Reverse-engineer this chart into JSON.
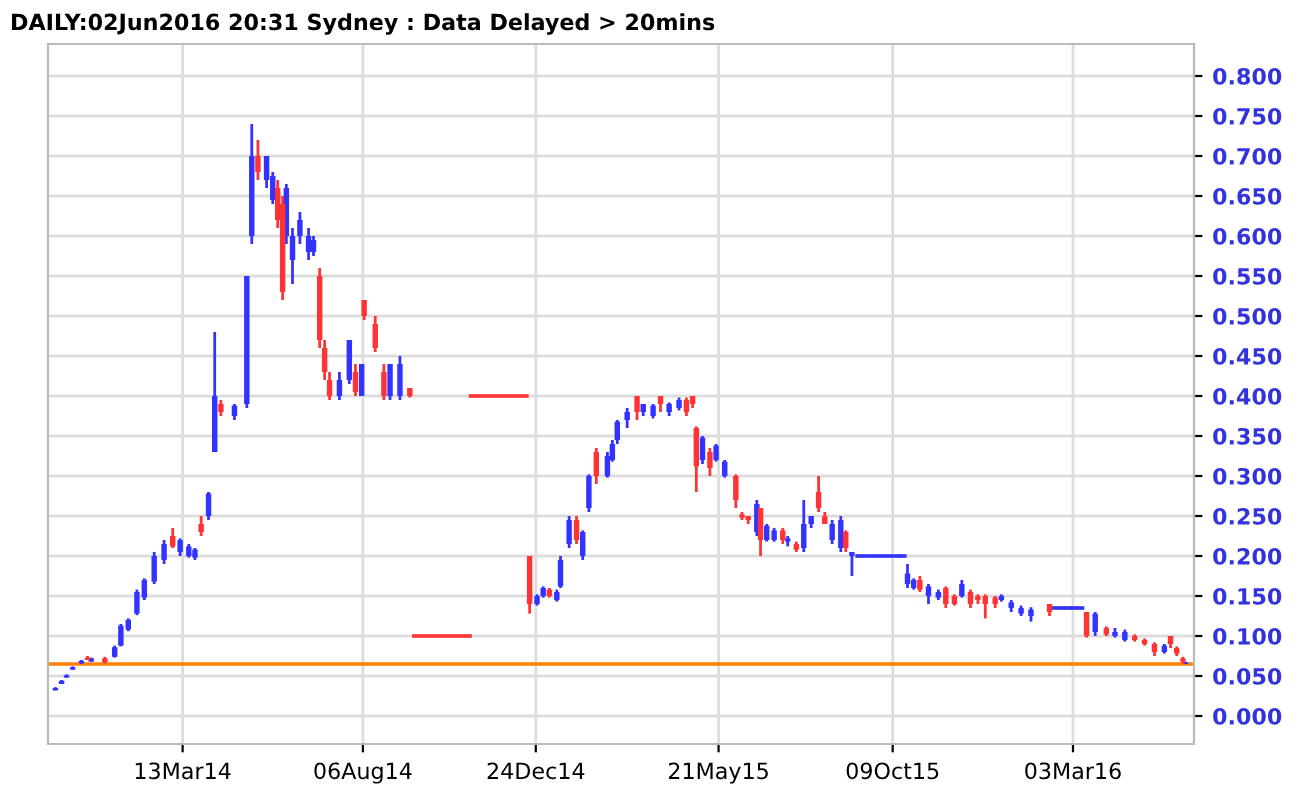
{
  "chart_data": {
    "type": "candlestick",
    "title": "DAILY:02Jun2016 20:31 Sydney : Data Delayed > 20mins",
    "series": [
      {
        "color": "#3333ff",
        "x": [
          "2013-11-30",
          "2013-12-05",
          "2013-12-09",
          "2013-12-14",
          "2013-12-21",
          "2013-12-29",
          "2014-01-17",
          "2014-01-22",
          "2014-01-28",
          "2014-02-04",
          "2014-02-10",
          "2014-02-18",
          "2014-02-26",
          "2014-03-11",
          "2014-03-18",
          "2014-03-23",
          "2014-04-03",
          "2014-04-08",
          "2014-04-24",
          "2014-05-04",
          "2014-05-08",
          "2014-05-20",
          "2014-05-25",
          "2014-06-05",
          "2014-06-10",
          "2014-06-16",
          "2014-06-23",
          "2014-06-27",
          "2014-07-18",
          "2014-07-26",
          "2014-08-05",
          "2014-08-28",
          "2014-09-05",
          "2014-12-25",
          "2014-12-30",
          "2015-01-10",
          "2015-01-13",
          "2015-01-20",
          "2015-01-31",
          "2015-02-05",
          "2015-02-20",
          "2015-02-24",
          "2015-02-28",
          "2015-03-08",
          "2015-03-21",
          "2015-03-29",
          "2015-04-11",
          "2015-04-19",
          "2015-05-08",
          "2015-05-19",
          "2015-05-26",
          "2015-06-21",
          "2015-06-29",
          "2015-07-05",
          "2015-07-16",
          "2015-07-29",
          "2015-08-04",
          "2015-08-21",
          "2015-08-28",
          "2015-09-06",
          "2015-09-12",
          "2015-09-18",
          "2015-09-24",
          "2015-09-30",
          "2015-10-06",
          "2015-10-12",
          "2015-10-17",
          "2015-10-21",
          "2015-10-26",
          "2015-11-07",
          "2015-11-15",
          "2015-12-04",
          "2016-01-05",
          "2016-01-13",
          "2016-01-21",
          "2016-01-29",
          "2016-02-18",
          "2016-02-23",
          "2016-02-28",
          "2016-03-04",
          "2016-03-09",
          "2016-03-21",
          "2016-04-06",
          "2016-04-14",
          "2016-05-16",
          "2016-06-02"
        ],
        "ohlc": [
          [
            0.032,
            0.036,
            0.032,
            0.035
          ],
          [
            0.04,
            0.045,
            0.04,
            0.044
          ],
          [
            0.048,
            0.052,
            0.048,
            0.051
          ],
          [
            0.058,
            0.062,
            0.058,
            0.061
          ],
          [
            0.066,
            0.07,
            0.065,
            0.069
          ],
          [
            0.068,
            0.073,
            0.068,
            0.072
          ],
          [
            0.074,
            0.088,
            0.073,
            0.086
          ],
          [
            0.088,
            0.115,
            0.087,
            0.113
          ],
          [
            0.108,
            0.122,
            0.106,
            0.12
          ],
          [
            0.128,
            0.158,
            0.126,
            0.155
          ],
          [
            0.148,
            0.172,
            0.145,
            0.17
          ],
          [
            0.168,
            0.205,
            0.165,
            0.2
          ],
          [
            0.195,
            0.22,
            0.19,
            0.215
          ],
          [
            0.205,
            0.222,
            0.2,
            0.22
          ],
          [
            0.2,
            0.215,
            0.198,
            0.212
          ],
          [
            0.198,
            0.21,
            0.195,
            0.208
          ],
          [
            0.25,
            0.28,
            0.245,
            0.278
          ],
          [
            0.33,
            0.48,
            0.33,
            0.4
          ],
          [
            0.375,
            0.39,
            0.37,
            0.388
          ],
          [
            0.39,
            0.55,
            0.385,
            0.55
          ],
          [
            0.6,
            0.74,
            0.59,
            0.7
          ],
          [
            0.67,
            0.7,
            0.66,
            0.7
          ],
          [
            0.645,
            0.68,
            0.64,
            0.675
          ],
          [
            0.6,
            0.665,
            0.59,
            0.66
          ],
          [
            0.57,
            0.61,
            0.54,
            0.6
          ],
          [
            0.6,
            0.63,
            0.59,
            0.62
          ],
          [
            0.58,
            0.61,
            0.57,
            0.6
          ],
          [
            0.58,
            0.6,
            0.575,
            0.595
          ],
          [
            0.4,
            0.43,
            0.395,
            0.42
          ],
          [
            0.42,
            0.47,
            0.415,
            0.47
          ],
          [
            0.4,
            0.44,
            0.4,
            0.44
          ],
          [
            0.4,
            0.44,
            0.395,
            0.44
          ],
          [
            0.4,
            0.45,
            0.395,
            0.44
          ],
          [
            0.14,
            0.152,
            0.138,
            0.15
          ],
          [
            0.15,
            0.162,
            0.148,
            0.16
          ],
          [
            0.145,
            0.158,
            0.143,
            0.155
          ],
          [
            0.162,
            0.2,
            0.16,
            0.195
          ],
          [
            0.215,
            0.25,
            0.21,
            0.245
          ],
          [
            0.2,
            0.232,
            0.195,
            0.23
          ],
          [
            0.26,
            0.302,
            0.255,
            0.3
          ],
          [
            0.3,
            0.33,
            0.298,
            0.325
          ],
          [
            0.32,
            0.345,
            0.318,
            0.34
          ],
          [
            0.345,
            0.37,
            0.34,
            0.368
          ],
          [
            0.37,
            0.385,
            0.36,
            0.38
          ],
          [
            0.38,
            0.39,
            0.375,
            0.39
          ],
          [
            0.375,
            0.39,
            0.372,
            0.388
          ],
          [
            0.38,
            0.392,
            0.375,
            0.39
          ],
          [
            0.385,
            0.398,
            0.382,
            0.395
          ],
          [
            0.32,
            0.35,
            0.315,
            0.348
          ],
          [
            0.32,
            0.34,
            0.318,
            0.338
          ],
          [
            0.3,
            0.32,
            0.298,
            0.318
          ],
          [
            0.23,
            0.27,
            0.225,
            0.265
          ],
          [
            0.22,
            0.24,
            0.218,
            0.238
          ],
          [
            0.22,
            0.235,
            0.218,
            0.232
          ],
          [
            0.218,
            0.225,
            0.212,
            0.222
          ],
          [
            0.21,
            0.27,
            0.205,
            0.24
          ],
          [
            0.24,
            0.25,
            0.235,
            0.25
          ],
          [
            0.22,
            0.245,
            0.215,
            0.24
          ],
          [
            0.21,
            0.25,
            0.205,
            0.245
          ],
          [
            0.2,
            0.205,
            0.175,
            0.205
          ],
          [
            0.2,
            0.2,
            0.2,
            0.2
          ],
          [
            0.2,
            0.2,
            0.2,
            0.2
          ],
          [
            0.2,
            0.2,
            0.2,
            0.2
          ],
          [
            0.2,
            0.2,
            0.2,
            0.2
          ],
          [
            0.2,
            0.2,
            0.2,
            0.2
          ],
          [
            0.2,
            0.2,
            0.2,
            0.2
          ],
          [
            0.2,
            0.2,
            0.2,
            0.2
          ],
          [
            0.165,
            0.19,
            0.16,
            0.178
          ],
          [
            0.16,
            0.172,
            0.158,
            0.17
          ],
          [
            0.15,
            0.165,
            0.14,
            0.162
          ],
          [
            0.148,
            0.158,
            0.145,
            0.155
          ],
          [
            0.15,
            0.17,
            0.148,
            0.165
          ],
          [
            0.145,
            0.152,
            0.143,
            0.15
          ],
          [
            0.135,
            0.145,
            0.13,
            0.142
          ],
          [
            0.128,
            0.138,
            0.125,
            0.135
          ],
          [
            0.125,
            0.136,
            0.118,
            0.133
          ],
          [
            0.135,
            0.135,
            0.135,
            0.135
          ],
          [
            0.135,
            0.135,
            0.135,
            0.135
          ],
          [
            0.135,
            0.135,
            0.135,
            0.135
          ],
          [
            0.135,
            0.135,
            0.135,
            0.135
          ],
          [
            0.135,
            0.135,
            0.135,
            0.135
          ],
          [
            0.105,
            0.13,
            0.1,
            0.128
          ],
          [
            0.1,
            0.11,
            0.098,
            0.105
          ],
          [
            0.095,
            0.108,
            0.093,
            0.105
          ],
          [
            0.08,
            0.09,
            0.078,
            0.088
          ],
          [
            0.065,
            0.068,
            0.065,
            0.066
          ]
        ]
      },
      {
        "color": "#ff3333",
        "x": [
          "2013-12-26",
          "2014-01-09",
          "2014-03-05",
          "2014-03-28",
          "2014-04-13",
          "2014-05-13",
          "2014-05-29",
          "2014-06-02",
          "2014-07-02",
          "2014-07-06",
          "2014-07-10",
          "2014-07-31",
          "2014-08-07",
          "2014-08-16",
          "2014-08-23",
          "2014-09-13",
          "2014-09-18",
          "2014-09-24",
          "2014-09-30",
          "2014-10-06",
          "2014-10-12",
          "2014-10-18",
          "2014-10-24",
          "2014-10-30",
          "2014-11-03",
          "2014-11-09",
          "2014-11-15",
          "2014-11-21",
          "2014-11-27",
          "2014-12-03",
          "2014-12-09",
          "2014-12-15",
          "2014-12-19",
          "2015-01-04",
          "2015-01-26",
          "2015-02-11",
          "2015-03-16",
          "2015-04-04",
          "2015-04-25",
          "2015-04-30",
          "2015-05-03",
          "2015-05-14",
          "2015-06-04",
          "2015-06-09",
          "2015-06-14",
          "2015-06-24",
          "2015-07-12",
          "2015-07-23",
          "2015-08-10",
          "2015-08-15",
          "2015-09-01",
          "2015-10-31",
          "2015-11-21",
          "2015-11-28",
          "2015-12-11",
          "2015-12-17",
          "2015-12-23",
          "2015-12-31",
          "2016-02-13",
          "2016-03-14",
          "2016-03-30",
          "2016-04-22",
          "2016-04-30",
          "2016-05-08",
          "2016-05-21",
          "2016-05-26",
          "2016-05-31"
        ],
        "ohlc": [
          [
            0.073,
            0.075,
            0.07,
            0.07
          ],
          [
            0.072,
            0.074,
            0.066,
            0.067
          ],
          [
            0.225,
            0.235,
            0.21,
            0.212
          ],
          [
            0.24,
            0.25,
            0.225,
            0.23
          ],
          [
            0.39,
            0.395,
            0.375,
            0.38
          ],
          [
            0.7,
            0.72,
            0.67,
            0.68
          ],
          [
            0.66,
            0.67,
            0.61,
            0.62
          ],
          [
            0.64,
            0.65,
            0.52,
            0.53
          ],
          [
            0.55,
            0.56,
            0.46,
            0.47
          ],
          [
            0.46,
            0.47,
            0.42,
            0.43
          ],
          [
            0.42,
            0.43,
            0.395,
            0.4
          ],
          [
            0.43,
            0.44,
            0.4,
            0.405
          ],
          [
            0.52,
            0.52,
            0.495,
            0.5
          ],
          [
            0.49,
            0.5,
            0.455,
            0.46
          ],
          [
            0.43,
            0.44,
            0.395,
            0.4
          ],
          [
            0.41,
            0.41,
            0.398,
            0.4
          ],
          [
            0.1,
            0.1,
            0.1,
            0.1
          ],
          [
            0.1,
            0.1,
            0.1,
            0.1
          ],
          [
            0.1,
            0.1,
            0.1,
            0.1
          ],
          [
            0.1,
            0.1,
            0.1,
            0.1
          ],
          [
            0.1,
            0.1,
            0.1,
            0.1
          ],
          [
            0.1,
            0.1,
            0.1,
            0.1
          ],
          [
            0.1,
            0.1,
            0.1,
            0.1
          ],
          [
            0.1,
            0.1,
            0.1,
            0.1
          ],
          [
            0.4,
            0.4,
            0.4,
            0.4
          ],
          [
            0.4,
            0.4,
            0.4,
            0.4
          ],
          [
            0.4,
            0.4,
            0.4,
            0.4
          ],
          [
            0.4,
            0.4,
            0.4,
            0.4
          ],
          [
            0.4,
            0.4,
            0.4,
            0.4
          ],
          [
            0.4,
            0.4,
            0.4,
            0.4
          ],
          [
            0.4,
            0.4,
            0.4,
            0.4
          ],
          [
            0.4,
            0.4,
            0.4,
            0.4
          ],
          [
            0.2,
            0.2,
            0.128,
            0.14
          ],
          [
            0.158,
            0.16,
            0.148,
            0.15
          ],
          [
            0.245,
            0.25,
            0.215,
            0.22
          ],
          [
            0.33,
            0.335,
            0.29,
            0.3
          ],
          [
            0.4,
            0.4,
            0.37,
            0.38
          ],
          [
            0.4,
            0.4,
            0.38,
            0.39
          ],
          [
            0.395,
            0.398,
            0.375,
            0.38
          ],
          [
            0.4,
            0.4,
            0.385,
            0.39
          ],
          [
            0.36,
            0.362,
            0.28,
            0.312
          ],
          [
            0.33,
            0.335,
            0.3,
            0.31
          ],
          [
            0.3,
            0.302,
            0.26,
            0.27
          ],
          [
            0.252,
            0.255,
            0.245,
            0.248
          ],
          [
            0.25,
            0.25,
            0.24,
            0.245
          ],
          [
            0.26,
            0.26,
            0.2,
            0.22
          ],
          [
            0.232,
            0.235,
            0.215,
            0.22
          ],
          [
            0.215,
            0.218,
            0.205,
            0.208
          ],
          [
            0.28,
            0.3,
            0.255,
            0.26
          ],
          [
            0.25,
            0.255,
            0.24,
            0.24
          ],
          [
            0.23,
            0.232,
            0.205,
            0.21
          ],
          [
            0.17,
            0.175,
            0.155,
            0.158
          ],
          [
            0.16,
            0.162,
            0.135,
            0.14
          ],
          [
            0.15,
            0.152,
            0.138,
            0.14
          ],
          [
            0.155,
            0.158,
            0.135,
            0.14
          ],
          [
            0.15,
            0.152,
            0.14,
            0.145
          ],
          [
            0.15,
            0.152,
            0.122,
            0.14
          ],
          [
            0.148,
            0.15,
            0.135,
            0.14
          ],
          [
            0.14,
            0.14,
            0.125,
            0.13
          ],
          [
            0.13,
            0.13,
            0.098,
            0.1
          ],
          [
            0.11,
            0.112,
            0.1,
            0.102
          ],
          [
            0.1,
            0.102,
            0.093,
            0.095
          ],
          [
            0.095,
            0.097,
            0.088,
            0.09
          ],
          [
            0.09,
            0.092,
            0.075,
            0.08
          ],
          [
            0.1,
            0.1,
            0.085,
            0.09
          ],
          [
            0.085,
            0.087,
            0.075,
            0.078
          ],
          [
            0.072,
            0.074,
            0.065,
            0.068
          ]
        ]
      }
    ],
    "xlim": [
      "2013-11-24",
      "2016-06-09"
    ],
    "xticks": [
      {
        "value": "2014-03-13",
        "label": "13Mar14"
      },
      {
        "value": "2014-08-06",
        "label": "06Aug14"
      },
      {
        "value": "2014-12-24",
        "label": "24Dec14"
      },
      {
        "value": "2015-05-21",
        "label": "21May15"
      },
      {
        "value": "2015-10-09",
        "label": "09Oct15"
      },
      {
        "value": "2016-03-03",
        "label": "03Mar16"
      }
    ],
    "ylim": [
      -0.035,
      0.84
    ],
    "yticks": [
      {
        "value": 0,
        "label": "0.000"
      },
      {
        "value": 0.05,
        "label": "0.050"
      },
      {
        "value": 0.1,
        "label": "0.100"
      },
      {
        "value": 0.15,
        "label": "0.150"
      },
      {
        "value": 0.2,
        "label": "0.200"
      },
      {
        "value": 0.25,
        "label": "0.250"
      },
      {
        "value": 0.3,
        "label": "0.300"
      },
      {
        "value": 0.35,
        "label": "0.350"
      },
      {
        "value": 0.4,
        "label": "0.400"
      },
      {
        "value": 0.45,
        "label": "0.450"
      },
      {
        "value": 0.5,
        "label": "0.500"
      },
      {
        "value": 0.55,
        "label": "0.550"
      },
      {
        "value": 0.6,
        "label": "0.600"
      },
      {
        "value": 0.65,
        "label": "0.650"
      },
      {
        "value": 0.7,
        "label": "0.700"
      },
      {
        "value": 0.75,
        "label": "0.750"
      },
      {
        "value": 0.8,
        "label": "0.800"
      }
    ],
    "ref_lines": [
      {
        "axis": "y",
        "value": 0.065,
        "color": "#ff8000"
      }
    ],
    "grid": true
  }
}
